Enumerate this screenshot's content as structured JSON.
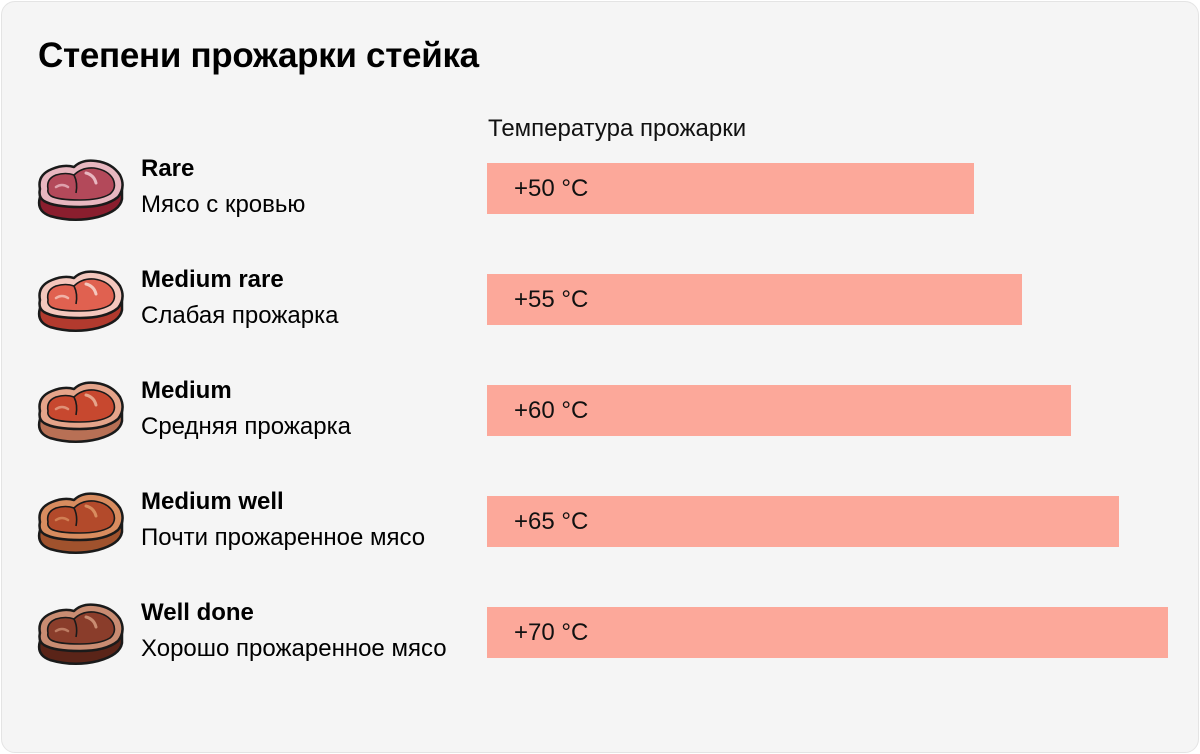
{
  "title": "Степени прожарки стейка",
  "column_label": "Температура прожарки",
  "bar_color": "#fca89a",
  "chart_data": {
    "type": "bar",
    "orientation": "horizontal",
    "title": "Степени прожарки стейка",
    "xlabel": "Температура прожарки",
    "categories": [
      "Rare",
      "Medium rare",
      "Medium",
      "Medium well",
      "Well done"
    ],
    "values": [
      50,
      55,
      60,
      65,
      70
    ],
    "unit": "°C",
    "xlim": [
      0,
      70
    ]
  },
  "rows": [
    {
      "name": "Rare",
      "desc": "Мясо с кровью",
      "temp": "+50 °C",
      "value": 50,
      "meat": "#b3495a",
      "side": "#8a1e2e",
      "fat": "#e8b7c0",
      "icon": "rare-steak-icon"
    },
    {
      "name": "Medium rare",
      "desc": "Слабая прожарка",
      "temp": "+55 °C",
      "value": 55,
      "meat": "#e06150",
      "side": "#b23a2e",
      "fat": "#f4c7bd",
      "icon": "medium-rare-steak-icon"
    },
    {
      "name": "Medium",
      "desc": "Средняя прожарка",
      "temp": "+60 °C",
      "value": 60,
      "meat": "#c7482f",
      "side": "#b87055",
      "fat": "#e5a48a",
      "icon": "medium-steak-icon"
    },
    {
      "name": "Medium well",
      "desc": "Почти прожаренное мясо",
      "temp": "+65 °C",
      "value": 65,
      "meat": "#b34a2b",
      "side": "#a0522d",
      "fat": "#d88c5f",
      "icon": "medium-well-steak-icon"
    },
    {
      "name": "Well done",
      "desc": "Хорошо прожаренное мясо",
      "temp": "+70 °C",
      "value": 70,
      "meat": "#8a3d2b",
      "side": "#5a2418",
      "fat": "#c98c72",
      "icon": "well-done-steak-icon"
    }
  ]
}
